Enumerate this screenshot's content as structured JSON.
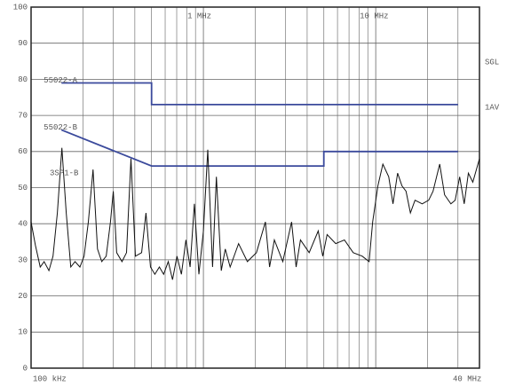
{
  "chart_data": {
    "type": "line",
    "xlog": true,
    "grid": true,
    "xlim": [
      0.1,
      40
    ],
    "xticks": [
      {
        "value": 0.1,
        "label": "100 kHz"
      },
      {
        "value": 1,
        "label": "1 MHz"
      },
      {
        "value": 10,
        "label": "10 MHz"
      },
      {
        "value": 40,
        "label": "40 MHz"
      }
    ],
    "ylim": [
      0,
      100
    ],
    "yticks": [
      0,
      10,
      20,
      30,
      40,
      50,
      60,
      70,
      80,
      90,
      100
    ],
    "annotations": [
      "SGL",
      "1AV",
      "3SP1-B"
    ],
    "series": [
      {
        "name": "55022-A",
        "color": "#3b4a9c",
        "x": [
          0.15,
          0.5,
          0.5,
          30
        ],
        "values": [
          79,
          79,
          73,
          73
        ]
      },
      {
        "name": "55022-B",
        "color": "#3b4a9c",
        "x": [
          0.15,
          0.5,
          5,
          5,
          30
        ],
        "values": [
          66,
          56,
          56,
          60,
          60
        ]
      },
      {
        "color": "#111111",
        "x": [
          0.1,
          0.106,
          0.113,
          0.119,
          0.127,
          0.134,
          0.142,
          0.151,
          0.16,
          0.17,
          0.18,
          0.192,
          0.203,
          0.215,
          0.229,
          0.243,
          0.257,
          0.273,
          0.289,
          0.3,
          0.314,
          0.337,
          0.358,
          0.38,
          0.403,
          0.438,
          0.464,
          0.493,
          0.523,
          0.555,
          0.588,
          0.625,
          0.662,
          0.702,
          0.745,
          0.792,
          0.837,
          0.886,
          0.941,
          1.0,
          1.06,
          1.13,
          1.19,
          1.27,
          1.34,
          1.43,
          1.6,
          1.8,
          2.03,
          2.29,
          2.42,
          2.58,
          2.89,
          3.25,
          3.45,
          3.66,
          4.11,
          4.64,
          4.93,
          5.22,
          5.86,
          6.58,
          7.4,
          8.35,
          9.15,
          9.6,
          10.3,
          11.0,
          11.9,
          12.6,
          13.4,
          14.2,
          15.0,
          15.9,
          16.9,
          18.6,
          20.3,
          21.5,
          23.5,
          25.1,
          27.3,
          28.9,
          30.7,
          32.6,
          34.5,
          36.6,
          40.0
        ],
        "values": [
          40.5,
          34,
          28,
          29.5,
          27,
          31,
          43,
          61,
          43,
          28,
          29.5,
          28,
          31,
          40.5,
          55,
          33,
          29.5,
          31,
          40.5,
          49,
          32,
          29.5,
          32,
          58,
          31,
          32,
          43,
          28,
          26,
          28,
          26,
          29.5,
          24.5,
          31,
          26,
          35.5,
          28,
          45.5,
          26,
          38,
          60.5,
          28,
          53,
          27,
          33,
          28,
          34.5,
          29.5,
          32,
          40.5,
          28,
          35.5,
          29.5,
          40.5,
          28,
          35.5,
          32,
          38,
          31,
          37,
          34.5,
          35.5,
          32,
          31,
          29.5,
          40.5,
          50.5,
          56.5,
          53,
          45.5,
          54,
          50.5,
          49,
          43,
          46.5,
          45.5,
          46.5,
          49,
          56.5,
          48,
          45.5,
          46.5,
          53,
          45.5,
          54,
          51.5,
          58
        ]
      }
    ]
  }
}
